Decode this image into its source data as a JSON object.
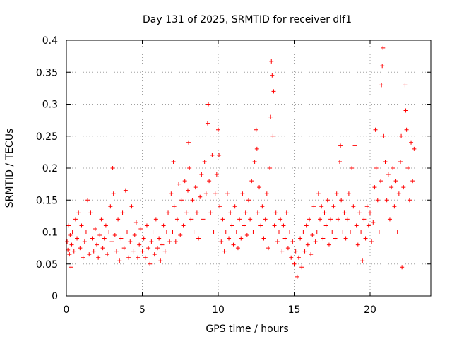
{
  "chart_data": {
    "type": "scatter",
    "title": "Day 131 of 2025, SRMTID for receiver dlf1",
    "xlabel": "GPS time / hours",
    "ylabel": "SRMTID / TECUs",
    "xlim": [
      0,
      24
    ],
    "ylim": [
      0,
      0.4
    ],
    "xticks": [
      0,
      5,
      10,
      15,
      20
    ],
    "xtick_labels": [
      "0",
      "5",
      "10",
      "15",
      "20"
    ],
    "yticks": [
      0,
      0.05,
      0.1,
      0.15,
      0.2,
      0.25,
      0.3,
      0.35,
      0.4
    ],
    "ytick_labels": [
      "0",
      "0.05",
      "0.1",
      "0.15",
      "0.2",
      "0.25",
      "0.3",
      "0.35",
      "0.4"
    ],
    "grid": true,
    "marker": "plus",
    "color": "#ff0000",
    "series": [
      {
        "name": "SRMTID",
        "points": [
          [
            0.0,
            0.153
          ],
          [
            0.05,
            0.085
          ],
          [
            0.1,
            0.072
          ],
          [
            0.15,
            0.11
          ],
          [
            0.2,
            0.065
          ],
          [
            0.25,
            0.095
          ],
          [
            0.3,
            0.045
          ],
          [
            0.35,
            0.08
          ],
          [
            0.4,
            0.1
          ],
          [
            0.5,
            0.07
          ],
          [
            0.6,
            0.12
          ],
          [
            0.7,
            0.09
          ],
          [
            0.8,
            0.13
          ],
          [
            0.9,
            0.075
          ],
          [
            1.0,
            0.11
          ],
          [
            1.1,
            0.06
          ],
          [
            1.2,
            0.085
          ],
          [
            1.3,
            0.1
          ],
          [
            1.4,
            0.15
          ],
          [
            1.5,
            0.065
          ],
          [
            1.6,
            0.13
          ],
          [
            1.7,
            0.09
          ],
          [
            1.8,
            0.07
          ],
          [
            1.9,
            0.105
          ],
          [
            2.0,
            0.08
          ],
          [
            2.1,
            0.06
          ],
          [
            2.2,
            0.095
          ],
          [
            2.3,
            0.12
          ],
          [
            2.4,
            0.075
          ],
          [
            2.5,
            0.09
          ],
          [
            2.6,
            0.11
          ],
          [
            2.7,
            0.065
          ],
          [
            2.8,
            0.1
          ],
          [
            2.9,
            0.14
          ],
          [
            3.0,
            0.085
          ],
          [
            3.05,
            0.2
          ],
          [
            3.1,
            0.16
          ],
          [
            3.2,
            0.095
          ],
          [
            3.3,
            0.07
          ],
          [
            3.4,
            0.12
          ],
          [
            3.5,
            0.055
          ],
          [
            3.6,
            0.09
          ],
          [
            3.7,
            0.13
          ],
          [
            3.8,
            0.075
          ],
          [
            3.9,
            0.165
          ],
          [
            4.0,
            0.1
          ],
          [
            4.1,
            0.06
          ],
          [
            4.2,
            0.085
          ],
          [
            4.3,
            0.14
          ],
          [
            4.4,
            0.07
          ],
          [
            4.5,
            0.095
          ],
          [
            4.6,
            0.115
          ],
          [
            4.7,
            0.06
          ],
          [
            4.8,
            0.08
          ],
          [
            4.9,
            0.105
          ],
          [
            5.0,
            0.07
          ],
          [
            5.1,
            0.09
          ],
          [
            5.2,
            0.06
          ],
          [
            5.3,
            0.11
          ],
          [
            5.4,
            0.075
          ],
          [
            5.5,
            0.05
          ],
          [
            5.6,
            0.085
          ],
          [
            5.7,
            0.1
          ],
          [
            5.8,
            0.065
          ],
          [
            5.9,
            0.12
          ],
          [
            6.0,
            0.075
          ],
          [
            6.1,
            0.09
          ],
          [
            6.2,
            0.055
          ],
          [
            6.3,
            0.08
          ],
          [
            6.4,
            0.11
          ],
          [
            6.5,
            0.07
          ],
          [
            6.6,
            0.1
          ],
          [
            6.7,
            0.13
          ],
          [
            6.8,
            0.085
          ],
          [
            6.9,
            0.16
          ],
          [
            7.0,
            0.1
          ],
          [
            7.05,
            0.21
          ],
          [
            7.1,
            0.14
          ],
          [
            7.2,
            0.085
          ],
          [
            7.3,
            0.12
          ],
          [
            7.4,
            0.175
          ],
          [
            7.5,
            0.095
          ],
          [
            7.6,
            0.15
          ],
          [
            7.7,
            0.11
          ],
          [
            7.8,
            0.18
          ],
          [
            7.9,
            0.13
          ],
          [
            8.0,
            0.165
          ],
          [
            8.05,
            0.24
          ],
          [
            8.1,
            0.2
          ],
          [
            8.2,
            0.12
          ],
          [
            8.3,
            0.15
          ],
          [
            8.4,
            0.1
          ],
          [
            8.5,
            0.17
          ],
          [
            8.6,
            0.13
          ],
          [
            8.7,
            0.09
          ],
          [
            8.8,
            0.155
          ],
          [
            8.9,
            0.19
          ],
          [
            9.0,
            0.12
          ],
          [
            9.1,
            0.21
          ],
          [
            9.2,
            0.16
          ],
          [
            9.3,
            0.27
          ],
          [
            9.35,
            0.3
          ],
          [
            9.4,
            0.18
          ],
          [
            9.5,
            0.13
          ],
          [
            9.6,
            0.22
          ],
          [
            9.7,
            0.1
          ],
          [
            9.8,
            0.16
          ],
          [
            9.9,
            0.19
          ],
          [
            10.0,
            0.26
          ],
          [
            10.05,
            0.22
          ],
          [
            10.1,
            0.14
          ],
          [
            10.2,
            0.085
          ],
          [
            10.3,
            0.12
          ],
          [
            10.4,
            0.07
          ],
          [
            10.5,
            0.1
          ],
          [
            10.6,
            0.16
          ],
          [
            10.7,
            0.09
          ],
          [
            10.8,
            0.13
          ],
          [
            10.9,
            0.11
          ],
          [
            11.0,
            0.08
          ],
          [
            11.1,
            0.14
          ],
          [
            11.2,
            0.1
          ],
          [
            11.3,
            0.075
          ],
          [
            11.4,
            0.12
          ],
          [
            11.5,
            0.09
          ],
          [
            11.6,
            0.16
          ],
          [
            11.7,
            0.11
          ],
          [
            11.8,
            0.13
          ],
          [
            11.9,
            0.095
          ],
          [
            12.0,
            0.15
          ],
          [
            12.1,
            0.12
          ],
          [
            12.2,
            0.18
          ],
          [
            12.3,
            0.1
          ],
          [
            12.4,
            0.21
          ],
          [
            12.5,
            0.26
          ],
          [
            12.55,
            0.23
          ],
          [
            12.6,
            0.13
          ],
          [
            12.7,
            0.17
          ],
          [
            12.8,
            0.11
          ],
          [
            12.9,
            0.14
          ],
          [
            13.0,
            0.09
          ],
          [
            13.1,
            0.12
          ],
          [
            13.2,
            0.16
          ],
          [
            13.3,
            0.075
          ],
          [
            13.4,
            0.2
          ],
          [
            13.45,
            0.28
          ],
          [
            13.5,
            0.367
          ],
          [
            13.55,
            0.345
          ],
          [
            13.6,
            0.25
          ],
          [
            13.65,
            0.32
          ],
          [
            13.7,
            0.11
          ],
          [
            13.8,
            0.13
          ],
          [
            13.9,
            0.085
          ],
          [
            14.0,
            0.1
          ],
          [
            14.1,
            0.12
          ],
          [
            14.2,
            0.07
          ],
          [
            14.3,
            0.11
          ],
          [
            14.4,
            0.09
          ],
          [
            14.5,
            0.13
          ],
          [
            14.6,
            0.075
          ],
          [
            14.7,
            0.1
          ],
          [
            14.8,
            0.06
          ],
          [
            14.9,
            0.085
          ],
          [
            15.0,
            0.05
          ],
          [
            15.1,
            0.07
          ],
          [
            15.2,
            0.03
          ],
          [
            15.3,
            0.06
          ],
          [
            15.4,
            0.09
          ],
          [
            15.5,
            0.045
          ],
          [
            15.6,
            0.1
          ],
          [
            15.7,
            0.07
          ],
          [
            15.8,
            0.11
          ],
          [
            15.9,
            0.08
          ],
          [
            16.0,
            0.12
          ],
          [
            16.1,
            0.065
          ],
          [
            16.2,
            0.095
          ],
          [
            16.3,
            0.14
          ],
          [
            16.4,
            0.085
          ],
          [
            16.5,
            0.1
          ],
          [
            16.6,
            0.16
          ],
          [
            16.7,
            0.12
          ],
          [
            16.8,
            0.14
          ],
          [
            16.9,
            0.09
          ],
          [
            17.0,
            0.13
          ],
          [
            17.1,
            0.11
          ],
          [
            17.2,
            0.15
          ],
          [
            17.3,
            0.08
          ],
          [
            17.4,
            0.12
          ],
          [
            17.5,
            0.1
          ],
          [
            17.6,
            0.14
          ],
          [
            17.7,
            0.09
          ],
          [
            17.8,
            0.16
          ],
          [
            17.9,
            0.12
          ],
          [
            18.0,
            0.21
          ],
          [
            18.05,
            0.235
          ],
          [
            18.1,
            0.15
          ],
          [
            18.2,
            0.1
          ],
          [
            18.3,
            0.13
          ],
          [
            18.4,
            0.09
          ],
          [
            18.5,
            0.12
          ],
          [
            18.6,
            0.16
          ],
          [
            18.7,
            0.1
          ],
          [
            18.8,
            0.2
          ],
          [
            18.9,
            0.14
          ],
          [
            19.0,
            0.235
          ],
          [
            19.1,
            0.11
          ],
          [
            19.2,
            0.08
          ],
          [
            19.3,
            0.13
          ],
          [
            19.4,
            0.1
          ],
          [
            19.5,
            0.055
          ],
          [
            19.6,
            0.12
          ],
          [
            19.7,
            0.09
          ],
          [
            19.8,
            0.14
          ],
          [
            19.9,
            0.11
          ],
          [
            20.0,
            0.13
          ],
          [
            20.1,
            0.085
          ],
          [
            20.2,
            0.115
          ],
          [
            20.3,
            0.17
          ],
          [
            20.35,
            0.26
          ],
          [
            20.4,
            0.2
          ],
          [
            20.5,
            0.15
          ],
          [
            20.6,
            0.1
          ],
          [
            20.7,
            0.18
          ],
          [
            20.75,
            0.33
          ],
          [
            20.8,
            0.36
          ],
          [
            20.85,
            0.388
          ],
          [
            20.9,
            0.25
          ],
          [
            21.0,
            0.21
          ],
          [
            21.1,
            0.15
          ],
          [
            21.2,
            0.19
          ],
          [
            21.3,
            0.12
          ],
          [
            21.4,
            0.17
          ],
          [
            21.5,
            0.2
          ],
          [
            21.6,
            0.14
          ],
          [
            21.7,
            0.18
          ],
          [
            21.8,
            0.1
          ],
          [
            21.9,
            0.16
          ],
          [
            22.0,
            0.21
          ],
          [
            22.05,
            0.25
          ],
          [
            22.1,
            0.045
          ],
          [
            22.2,
            0.17
          ],
          [
            22.3,
            0.33
          ],
          [
            22.35,
            0.29
          ],
          [
            22.4,
            0.26
          ],
          [
            22.5,
            0.2
          ],
          [
            22.6,
            0.15
          ],
          [
            22.7,
            0.24
          ],
          [
            22.8,
            0.18
          ],
          [
            22.9,
            0.23
          ]
        ]
      }
    ]
  }
}
